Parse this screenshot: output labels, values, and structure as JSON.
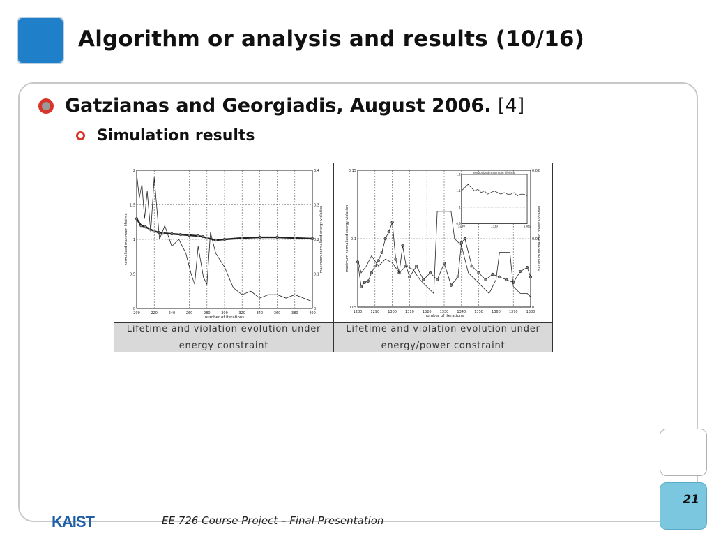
{
  "slide": {
    "title": "Algorithm or analysis and results (10/16)",
    "page_number": "21",
    "footer": "EE 726 Course Project – Final Presentation",
    "logo_text": "KAIST"
  },
  "bullets": {
    "level1": {
      "text": "Gatzianas and Georgiadis, August 2006.",
      "ref": "[4]"
    },
    "level2": {
      "text": "Simulation results"
    }
  },
  "figure_table": {
    "captions": [
      {
        "line1": "Lifetime and violation evolution under",
        "line2": "energy constraint"
      },
      {
        "line1": "Lifetime and violation evolution under",
        "line2": "energy/power constraint"
      }
    ]
  },
  "chart_data": [
    {
      "type": "line",
      "xlabel": "number of iterations",
      "ylabel": "normalized maximum lifetime",
      "y2label": "maximum normalized energy violation",
      "xlim": [
        200,
        400
      ],
      "ylim": [
        0,
        2
      ],
      "y2lim": [
        0,
        0.4
      ],
      "x_ticks": [
        "200",
        "220",
        "240",
        "260",
        "280",
        "300",
        "320",
        "340",
        "360",
        "380",
        "400"
      ],
      "y_ticks": [
        "0",
        "0.5",
        "1",
        "1.5",
        "2"
      ],
      "y2_ticks": [
        "0",
        "0.1",
        "0.2",
        "0.3",
        "0.4"
      ],
      "grid": true,
      "series": [
        {
          "x": [
            200,
            205,
            210,
            215,
            220,
            225,
            230,
            240,
            250,
            260,
            270,
            275,
            280,
            290,
            300,
            320,
            340,
            360,
            380,
            400
          ],
          "values": [
            1.3,
            1.2,
            1.18,
            1.15,
            1.12,
            1.1,
            1.09,
            1.08,
            1.07,
            1.06,
            1.05,
            1.04,
            1.02,
            0.99,
            1.0,
            1.02,
            1.03,
            1.03,
            1.02,
            1.01
          ]
        },
        {
          "x": [
            200,
            203,
            206,
            209,
            212,
            216,
            220,
            226,
            232,
            240,
            248,
            256,
            262,
            266,
            270,
            276,
            280,
            284,
            290,
            300,
            310,
            320,
            330,
            340,
            350,
            360,
            370,
            380,
            390,
            400
          ],
          "values": [
            0.39,
            0.32,
            0.36,
            0.26,
            0.34,
            0.22,
            0.38,
            0.2,
            0.24,
            0.18,
            0.2,
            0.16,
            0.1,
            0.07,
            0.18,
            0.09,
            0.07,
            0.22,
            0.16,
            0.12,
            0.06,
            0.04,
            0.05,
            0.03,
            0.04,
            0.04,
            0.03,
            0.04,
            0.03,
            0.02
          ]
        }
      ]
    },
    {
      "type": "line",
      "xlabel": "number of iterations",
      "ylabel": "maximum normalized energy violation",
      "y2label": "maximum normalized power violation",
      "xlim": [
        1280,
        1380
      ],
      "ylim": [
        0.05,
        0.15
      ],
      "y2lim": [
        0,
        0.02
      ],
      "x_ticks": [
        "1280",
        "1290",
        "1300",
        "1310",
        "1320",
        "1330",
        "1340",
        "1350",
        "1360",
        "1370",
        "1380"
      ],
      "y_ticks": [
        "0.05",
        "0.1",
        "0.15"
      ],
      "y2_ticks": [
        "0",
        "0.01",
        "0.02"
      ],
      "grid": true,
      "series": [
        {
          "x": [
            1280,
            1282,
            1284,
            1286,
            1288,
            1290,
            1292,
            1294,
            1296,
            1298,
            1300,
            1302,
            1304,
            1306,
            1308,
            1310,
            1314,
            1318,
            1322,
            1326,
            1330,
            1334,
            1338,
            1340,
            1342,
            1346,
            1350,
            1354,
            1358,
            1362,
            1366,
            1370,
            1374,
            1378,
            1380
          ],
          "values": [
            0.083,
            0.065,
            0.068,
            0.069,
            0.075,
            0.08,
            0.084,
            0.09,
            0.1,
            0.105,
            0.112,
            0.085,
            0.075,
            0.095,
            0.08,
            0.072,
            0.08,
            0.07,
            0.075,
            0.07,
            0.082,
            0.066,
            0.072,
            0.097,
            0.1,
            0.08,
            0.075,
            0.07,
            0.074,
            0.072,
            0.07,
            0.068,
            0.076,
            0.079,
            0.072
          ]
        },
        {
          "x": [
            1280,
            1282,
            1285,
            1288,
            1292,
            1296,
            1300,
            1304,
            1308,
            1312,
            1316,
            1320,
            1324,
            1326,
            1328,
            1334,
            1336,
            1340,
            1344,
            1348,
            1352,
            1356,
            1360,
            1362,
            1364,
            1368,
            1370,
            1374,
            1378,
            1380
          ],
          "values": [
            0.007,
            0.005,
            0.006,
            0.0075,
            0.006,
            0.007,
            0.0065,
            0.005,
            0.006,
            0.0055,
            0.004,
            0.003,
            0.002,
            0.014,
            0.014,
            0.014,
            0.01,
            0.009,
            0.005,
            0.004,
            0.003,
            0.002,
            0.004,
            0.008,
            0.008,
            0.008,
            0.003,
            0.002,
            0.002,
            0.0015
          ]
        }
      ],
      "inset": {
        "title": "normalized maximum lifetime",
        "xlim": [
          1280,
          1380
        ],
        "ylim": [
          0.9,
          1.2
        ],
        "x_ticks": [
          "1280",
          "1330",
          "1380"
        ],
        "y_ticks": [
          "0.9",
          "1",
          "1.1",
          "1.2"
        ],
        "values": [
          1.1,
          1.12,
          1.14,
          1.12,
          1.1,
          1.11,
          1.09,
          1.1,
          1.08,
          1.09,
          1.1,
          1.09,
          1.08,
          1.09,
          1.08,
          1.08,
          1.09,
          1.07,
          1.08,
          1.08,
          1.07
        ]
      }
    }
  ]
}
